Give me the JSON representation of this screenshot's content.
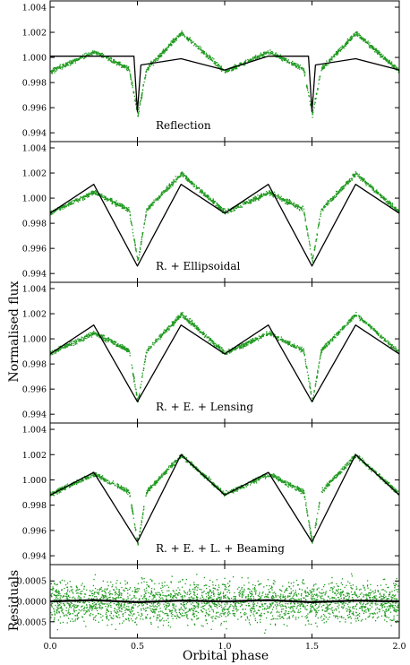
{
  "chart_data": {
    "type": "scatter",
    "xlabel": "Orbital phase",
    "ylabel": "Normalised flux",
    "xlim": [
      0.0,
      2.0
    ],
    "x_ticks": [
      "0.0",
      "0.5",
      "1.0",
      "1.5",
      "2.0"
    ],
    "grid": false,
    "legend": "none",
    "colors": {
      "data": "#1f9a1f",
      "model": "#000000",
      "residual_trend": "#000000",
      "frame": "#000000"
    },
    "panels": [
      {
        "label": "Reflection",
        "ylim": [
          0.9933,
          1.0045
        ],
        "y_ticks": [
          "0.994",
          "0.996",
          "0.998",
          "1.000",
          "1.002",
          "1.004"
        ],
        "series": [
          {
            "role": "data",
            "x": [
              0.0,
              0.25,
              0.45,
              0.5,
              0.55,
              0.75,
              1.0,
              1.25,
              1.45,
              1.5,
              1.55,
              1.75,
              2.0
            ],
            "y": [
              0.9989,
              1.0005,
              0.9991,
              0.9955,
              0.9991,
              1.002,
              0.9989,
              1.0005,
              0.9991,
              0.9955,
              0.9991,
              1.002,
              0.9989
            ]
          },
          {
            "role": "model",
            "x": [
              0.0,
              0.25,
              0.48,
              0.5,
              0.52,
              0.75,
              1.0,
              1.25,
              1.48,
              1.5,
              1.52,
              1.75,
              2.0
            ],
            "y": [
              1.0001,
              1.0001,
              1.0001,
              0.9957,
              0.9994,
              0.9999,
              0.999,
              1.0001,
              1.0001,
              0.9957,
              0.9994,
              0.9999,
              0.999
            ]
          }
        ]
      },
      {
        "label": "R. + Ellipsoidal",
        "ylim": [
          0.9933,
          1.0045
        ],
        "y_ticks": [
          "0.994",
          "0.996",
          "0.998",
          "1.000",
          "1.002",
          "1.004"
        ],
        "series": [
          {
            "role": "data",
            "x": [
              0.0,
              0.25,
              0.45,
              0.5,
              0.55,
              0.75,
              1.0,
              1.25,
              1.45,
              1.5,
              1.55,
              1.75,
              2.0
            ],
            "y": [
              0.9989,
              1.0005,
              0.9991,
              0.995,
              0.9991,
              1.002,
              0.9989,
              1.0005,
              0.9991,
              0.995,
              0.9991,
              1.002,
              0.9989
            ]
          },
          {
            "role": "model",
            "x": [
              0.0,
              0.25,
              0.5,
              0.75,
              1.0,
              1.25,
              1.5,
              1.75,
              2.0
            ],
            "y": [
              0.9988,
              1.0011,
              0.9946,
              1.0011,
              0.9988,
              1.0011,
              0.9946,
              1.0011,
              0.9988
            ]
          }
        ]
      },
      {
        "label": "R. + E. + Lensing",
        "ylim": [
          0.9933,
          1.0045
        ],
        "y_ticks": [
          "0.994",
          "0.996",
          "0.998",
          "1.000",
          "1.002",
          "1.004"
        ],
        "series": [
          {
            "role": "data",
            "x": [
              0.0,
              0.25,
              0.45,
              0.5,
              0.55,
              0.75,
              1.0,
              1.25,
              1.45,
              1.5,
              1.55,
              1.75,
              2.0
            ],
            "y": [
              0.9989,
              1.0005,
              0.9991,
              0.995,
              0.9991,
              1.002,
              0.9989,
              1.0005,
              0.9991,
              0.995,
              0.9991,
              1.002,
              0.9989
            ]
          },
          {
            "role": "model",
            "x": [
              0.0,
              0.25,
              0.5,
              0.75,
              1.0,
              1.25,
              1.5,
              1.75,
              2.0
            ],
            "y": [
              0.9988,
              1.0011,
              0.995,
              1.0011,
              0.9988,
              1.0011,
              0.995,
              1.0011,
              0.9988
            ]
          }
        ]
      },
      {
        "label": "R. + E. + L. + Beaming",
        "ylim": [
          0.9933,
          1.0045
        ],
        "y_ticks": [
          "0.994",
          "0.996",
          "0.998",
          "1.000",
          "1.002",
          "1.004"
        ],
        "series": [
          {
            "role": "data",
            "x": [
              0.0,
              0.25,
              0.45,
              0.5,
              0.55,
              0.75,
              1.0,
              1.25,
              1.45,
              1.5,
              1.55,
              1.75,
              2.0
            ],
            "y": [
              0.9989,
              1.0005,
              0.9991,
              0.995,
              0.9991,
              1.002,
              0.9989,
              1.0005,
              0.9991,
              0.995,
              0.9991,
              1.002,
              0.9989
            ]
          },
          {
            "role": "model",
            "x": [
              0.0,
              0.25,
              0.5,
              0.75,
              1.0,
              1.25,
              1.5,
              1.75,
              2.0
            ],
            "y": [
              0.9988,
              1.0006,
              0.9951,
              1.002,
              0.9988,
              1.0006,
              0.9951,
              1.002,
              0.9988
            ]
          }
        ]
      },
      {
        "label": "",
        "ylabel": "Residuals",
        "ylim": [
          -0.0009,
          0.0009
        ],
        "y_ticks": [
          "-0.0005",
          "0.0000",
          "0.0005"
        ],
        "series": [
          {
            "role": "data",
            "x": [
              0.0,
              0.5,
              1.0,
              1.5,
              2.0
            ],
            "y": [
              0.0,
              0.0,
              0.0,
              0.0,
              0.0
            ],
            "scatter": 0.00025
          },
          {
            "role": "residual_trend",
            "x": [
              0.0,
              0.25,
              0.5,
              0.75,
              1.0,
              1.25,
              1.5,
              1.75,
              2.0
            ],
            "y": [
              0.0,
              3e-05,
              -2e-05,
              2e-05,
              0.0,
              3e-05,
              -2e-05,
              2e-05,
              0.0
            ]
          }
        ]
      }
    ]
  }
}
